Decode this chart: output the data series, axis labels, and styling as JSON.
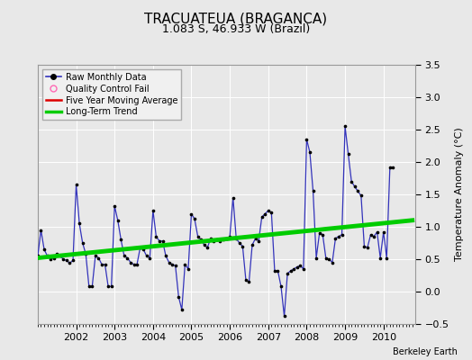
{
  "title": "TRACUATEUA (BRAGANCA)",
  "subtitle": "1.083 S, 46.933 W (Brazil)",
  "ylabel": "Temperature Anomaly (°C)",
  "attribution": "Berkeley Earth",
  "ylim": [
    -0.5,
    3.5
  ],
  "xlim": [
    2001.0,
    2010.83
  ],
  "yticks": [
    -0.5,
    0.0,
    0.5,
    1.0,
    1.5,
    2.0,
    2.5,
    3.0,
    3.5
  ],
  "xticks": [
    2002,
    2003,
    2004,
    2005,
    2006,
    2007,
    2008,
    2009,
    2010
  ],
  "bg_color": "#e8e8e8",
  "raw_x": [
    2001.0,
    2001.083,
    2001.167,
    2001.25,
    2001.333,
    2001.417,
    2001.5,
    2001.583,
    2001.667,
    2001.75,
    2001.833,
    2001.917,
    2002.0,
    2002.083,
    2002.167,
    2002.25,
    2002.333,
    2002.417,
    2002.5,
    2002.583,
    2002.667,
    2002.75,
    2002.833,
    2002.917,
    2003.0,
    2003.083,
    2003.167,
    2003.25,
    2003.333,
    2003.417,
    2003.5,
    2003.583,
    2003.667,
    2003.75,
    2003.833,
    2003.917,
    2004.0,
    2004.083,
    2004.167,
    2004.25,
    2004.333,
    2004.417,
    2004.5,
    2004.583,
    2004.667,
    2004.75,
    2004.833,
    2004.917,
    2005.0,
    2005.083,
    2005.167,
    2005.25,
    2005.333,
    2005.417,
    2005.5,
    2005.583,
    2005.667,
    2005.75,
    2005.833,
    2005.917,
    2006.0,
    2006.083,
    2006.167,
    2006.25,
    2006.333,
    2006.417,
    2006.5,
    2006.583,
    2006.667,
    2006.75,
    2006.833,
    2006.917,
    2007.0,
    2007.083,
    2007.167,
    2007.25,
    2007.333,
    2007.417,
    2007.5,
    2007.583,
    2007.667,
    2007.75,
    2007.833,
    2007.917,
    2008.0,
    2008.083,
    2008.167,
    2008.25,
    2008.333,
    2008.417,
    2008.5,
    2008.583,
    2008.667,
    2008.75,
    2008.833,
    2008.917,
    2009.0,
    2009.083,
    2009.167,
    2009.25,
    2009.333,
    2009.417,
    2009.5,
    2009.583,
    2009.667,
    2009.75,
    2009.833,
    2009.917,
    2010.0,
    2010.083,
    2010.167,
    2010.25
  ],
  "raw_y": [
    0.55,
    0.95,
    0.65,
    0.55,
    0.5,
    0.52,
    0.58,
    0.55,
    0.5,
    0.48,
    0.44,
    0.48,
    1.65,
    1.05,
    0.75,
    0.58,
    0.08,
    0.08,
    0.55,
    0.52,
    0.42,
    0.42,
    0.08,
    0.08,
    1.32,
    1.1,
    0.8,
    0.55,
    0.52,
    0.45,
    0.42,
    0.42,
    0.68,
    0.65,
    0.55,
    0.52,
    1.25,
    0.85,
    0.78,
    0.78,
    0.55,
    0.45,
    0.42,
    0.4,
    -0.08,
    -0.28,
    0.42,
    0.35,
    1.2,
    1.12,
    0.85,
    0.8,
    0.72,
    0.68,
    0.82,
    0.78,
    0.8,
    0.78,
    0.8,
    0.82,
    0.85,
    1.45,
    0.82,
    0.75,
    0.7,
    0.18,
    0.15,
    0.72,
    0.82,
    0.78,
    1.15,
    1.2,
    1.25,
    1.22,
    0.32,
    0.32,
    0.08,
    -0.38,
    0.28,
    0.32,
    0.35,
    0.38,
    0.4,
    0.35,
    2.35,
    2.15,
    1.55,
    0.52,
    0.9,
    0.88,
    0.52,
    0.5,
    0.45,
    0.82,
    0.85,
    0.88,
    2.55,
    2.12,
    1.7,
    1.62,
    1.55,
    1.48,
    0.7,
    0.68,
    0.88,
    0.85,
    0.92,
    0.52,
    0.92,
    0.52,
    1.92,
    1.92
  ],
  "trend_x": [
    2001.0,
    2010.75
  ],
  "trend_y": [
    0.52,
    1.1
  ],
  "line_color": "#3333bb",
  "marker_color": "#000000",
  "trend_color": "#00cc00",
  "ma_color": "#dd0000",
  "grid_color": "#ffffff",
  "title_fontsize": 11,
  "subtitle_fontsize": 9,
  "tick_fontsize": 8,
  "ylabel_fontsize": 8
}
